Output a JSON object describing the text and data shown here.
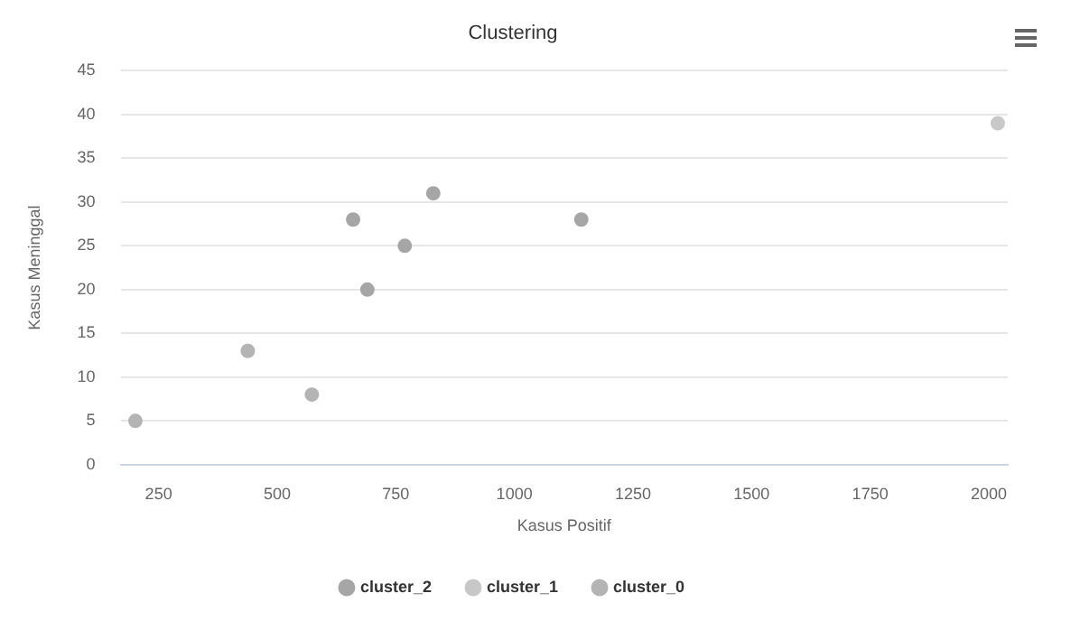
{
  "chart_data": {
    "type": "scatter",
    "title": "Clustering",
    "xlabel": "Kasus Positif",
    "ylabel": "Kasus Meninggal",
    "series": [
      {
        "name": "cluster_2",
        "color": "#a6a6a6",
        "x": [
          660,
          690,
          769,
          829,
          1141
        ],
        "values": [
          28,
          20,
          25,
          31,
          28
        ]
      },
      {
        "name": "cluster_1",
        "color": "#c8c8c8",
        "x": [
          2019
        ],
        "values": [
          39
        ]
      },
      {
        "name": "cluster_0",
        "color": "#b4b4b4",
        "x": [
          201,
          438,
          573
        ],
        "values": [
          5,
          13,
          8
        ]
      }
    ],
    "xlim": [
      170,
      2040
    ],
    "xticks": [
      250,
      500,
      750,
      1000,
      1250,
      1500,
      1750,
      2000
    ],
    "ylim": [
      0,
      45
    ],
    "yticks": [
      0,
      5,
      10,
      15,
      20,
      25,
      30,
      35,
      40,
      45
    ],
    "grid": "y",
    "legend": "bottom",
    "marker": "circle"
  }
}
